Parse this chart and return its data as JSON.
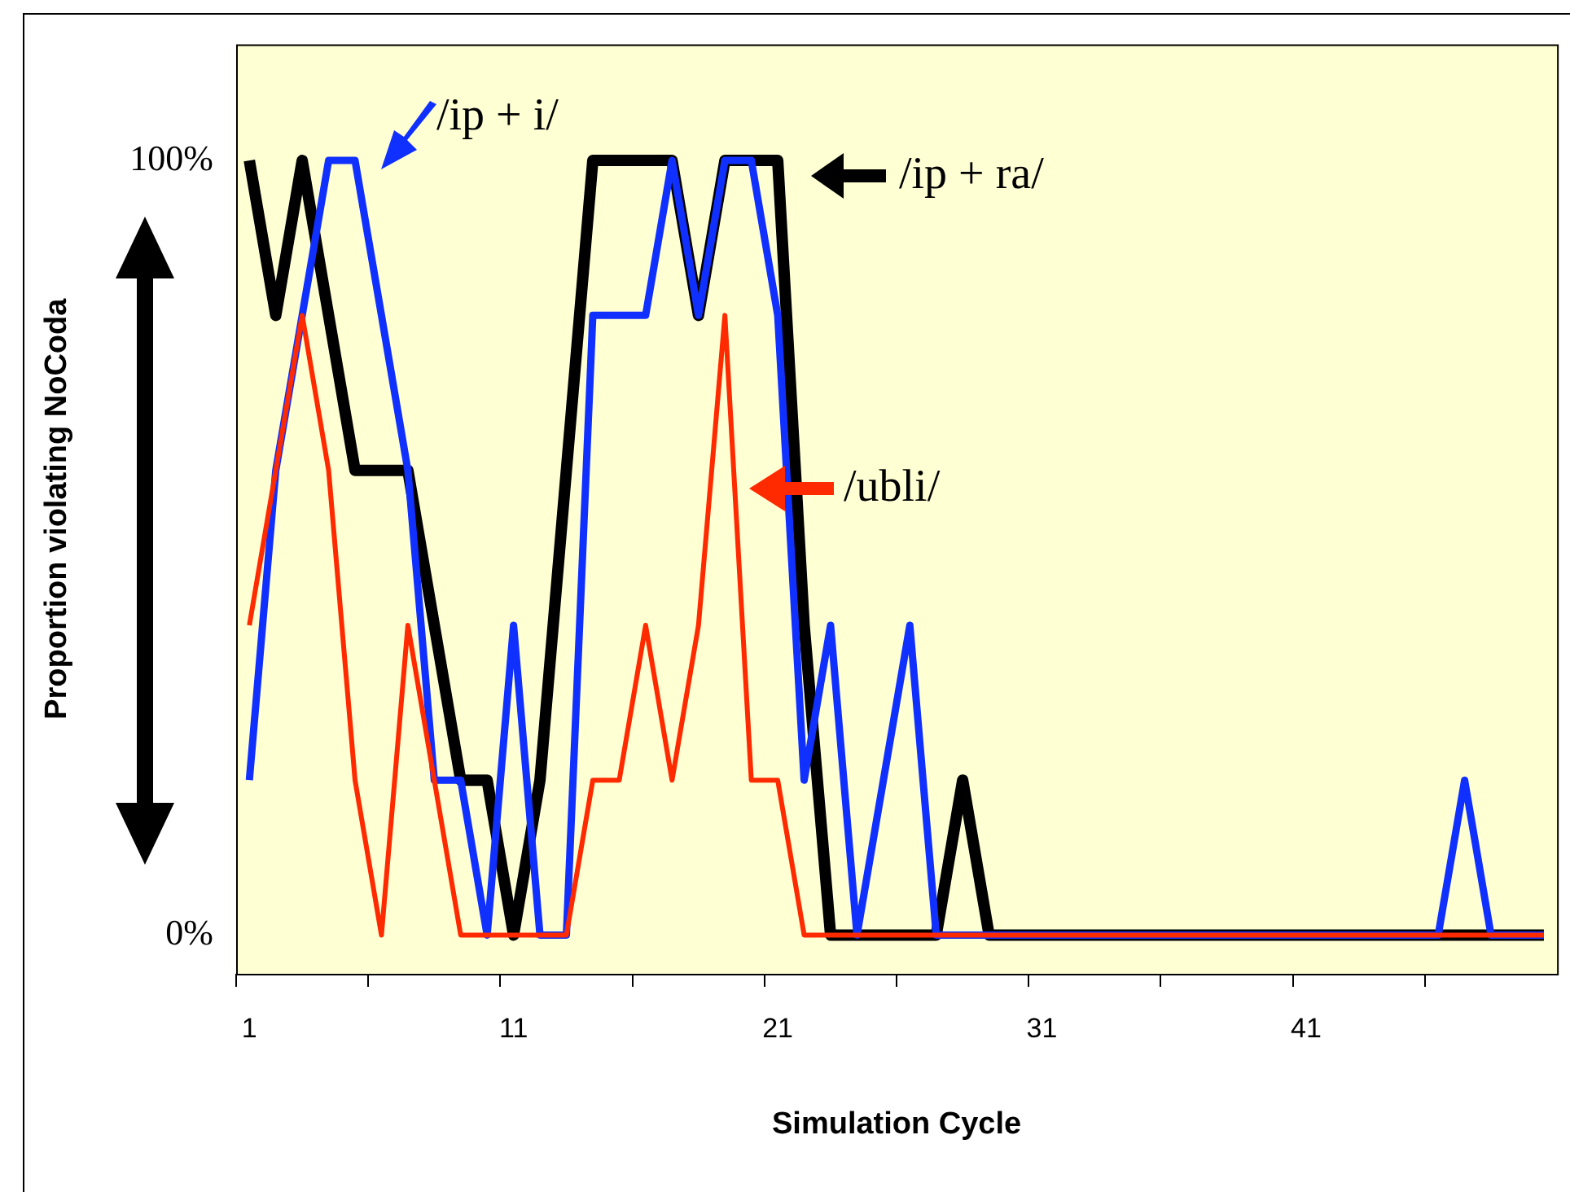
{
  "chart_data": {
    "type": "line",
    "xlabel": "Simulation Cycle",
    "ylabel": "Proportion violating NoCoda",
    "categories": [
      "1",
      null,
      null,
      null,
      null,
      null,
      null,
      null,
      null,
      null,
      "11",
      null,
      null,
      null,
      null,
      null,
      null,
      null,
      null,
      null,
      "21",
      null,
      null,
      null,
      null,
      null,
      null,
      null,
      null,
      null,
      "31",
      null,
      null,
      null,
      null,
      null,
      null,
      null,
      null,
      null,
      "41",
      null,
      null,
      null,
      null,
      null,
      null,
      null,
      null,
      null
    ],
    "ylim": [
      -5,
      115
    ],
    "yticks": [
      {
        "value": 0,
        "label": "0%"
      },
      {
        "value": 100,
        "label": "100%"
      }
    ],
    "grid": false,
    "legend": "top",
    "marker": "none",
    "series": [
      {
        "name": "/ip + i/",
        "color": "#1030ff",
        "values": [
          20,
          60,
          80,
          100,
          100,
          80,
          60,
          20,
          20,
          0,
          40,
          0,
          0,
          80,
          80,
          80,
          100,
          80,
          100,
          100,
          80,
          20,
          40,
          0,
          20,
          40,
          0,
          0,
          0,
          0,
          0,
          0,
          0,
          0,
          0,
          0,
          0,
          0,
          0,
          0,
          0,
          0,
          0,
          0,
          0,
          0,
          20,
          0,
          0,
          0
        ]
      },
      {
        "name": "/ip + ra/",
        "color": "#000000",
        "values": [
          100,
          80,
          100,
          80,
          60,
          60,
          60,
          40,
          20,
          20,
          0,
          20,
          60,
          100,
          100,
          100,
          100,
          80,
          100,
          100,
          100,
          40,
          0,
          0,
          0,
          0,
          0,
          20,
          0,
          0,
          0,
          0,
          0,
          0,
          0,
          0,
          0,
          0,
          0,
          0,
          0,
          0,
          0,
          0,
          0,
          0,
          0,
          0,
          0,
          0
        ]
      },
      {
        "name": "/ubli/",
        "color": "#ff2a00",
        "values": [
          40,
          60,
          80,
          60,
          20,
          0,
          40,
          20,
          0,
          0,
          0,
          0,
          0,
          20,
          20,
          40,
          20,
          40,
          80,
          20,
          20,
          0,
          0,
          0,
          0,
          0,
          0,
          0,
          0,
          0,
          0,
          0,
          0,
          0,
          0,
          0,
          0,
          0,
          0,
          0,
          0,
          0,
          0,
          0,
          0,
          0,
          0,
          0,
          0,
          0
        ]
      }
    ]
  }
}
